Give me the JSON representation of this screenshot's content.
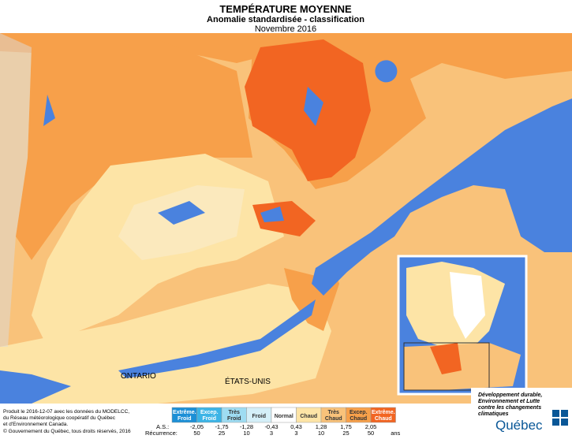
{
  "header": {
    "title": "TEMPÉRATURE MOYENNE",
    "subtitle": "Anomalie standardisée - classification",
    "period": "Novembre 2016"
  },
  "map_labels": {
    "ontario": "ONTARIO",
    "usa": "ÉTATS-UNIS"
  },
  "legend": {
    "classes": [
      {
        "lines": [
          "Extrême.",
          "Froid"
        ],
        "color": "#1c8fd6"
      },
      {
        "lines": [
          "Excep.",
          "Froid"
        ],
        "color": "#3cb4e6"
      },
      {
        "lines": [
          "Très",
          "Froid"
        ],
        "color": "#9edcf2"
      },
      {
        "lines": [
          "Froid"
        ],
        "color": "#d4eff8"
      },
      {
        "lines": [
          "Normal"
        ],
        "color": "#ffffff"
      },
      {
        "lines": [
          "Chaud"
        ],
        "color": "#fde4a6"
      },
      {
        "lines": [
          "Très",
          "Chaud"
        ],
        "color": "#f9c27a"
      },
      {
        "lines": [
          "Excep.",
          "Chaud"
        ],
        "color": "#f7a04a"
      },
      {
        "lines": [
          "Extrême.",
          "Chaud"
        ],
        "color": "#f26522"
      }
    ],
    "as_label": "A.S.:",
    "as_values": [
      "-2,05",
      "-1,75",
      "-1,28",
      "-0,43",
      "0,43",
      "1,28",
      "1,75",
      "2,05"
    ],
    "recurrence_label": "Récurrence:",
    "recurrence_values": [
      "50",
      "25",
      "10",
      "3",
      "3",
      "10",
      "25",
      "50"
    ],
    "recurrence_unit": "ans"
  },
  "credits": {
    "lines": [
      "Produit le 2016-12-07 avec les données du MODELCC,",
      "du Réseau météorologique coopératif du Québec",
      "et d'Environnement Canada."
    ],
    "copyright": "© Gouvernement du Québec, tous droits réservés, 2016"
  },
  "logo": {
    "lines": [
      "Développement durable,",
      "Environnement et Lutte",
      "contre les changements",
      "climatiques"
    ],
    "name": "Québec"
  }
}
